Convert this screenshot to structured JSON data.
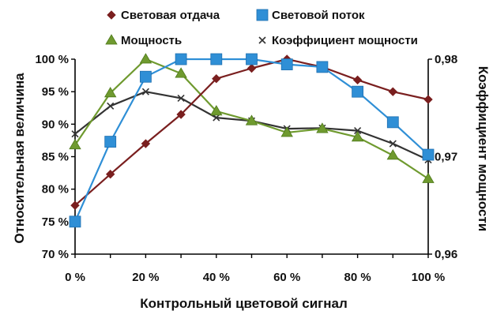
{
  "chart_data": {
    "type": "line",
    "xlabel": "Контрольный цветовой сигнал",
    "ylabel": "Относительная величина",
    "y2label": "Коэффициент мощности",
    "x": [
      0,
      10,
      20,
      30,
      40,
      50,
      60,
      70,
      80,
      90,
      100
    ],
    "x_tick_labels": [
      "0 %",
      "20 %",
      "40 %",
      "60 %",
      "80 %",
      "100 %"
    ],
    "x_tick_values": [
      0,
      20,
      40,
      60,
      80,
      100
    ],
    "ylim": [
      70,
      100
    ],
    "y_tick_labels": [
      "70 %",
      "75 %",
      "80 %",
      "85 %",
      "90 %",
      "95 %",
      "100 %"
    ],
    "y_tick_values": [
      70,
      75,
      80,
      85,
      90,
      95,
      100
    ],
    "y2lim": [
      0.96,
      0.98
    ],
    "y2_tick_labels": [
      "0,96",
      "0,97",
      "0,98"
    ],
    "y2_tick_values": [
      0.96,
      0.97,
      0.98
    ],
    "legend_position": "top",
    "series": [
      {
        "name": "Световая отдача",
        "axis": "left",
        "marker": "diamond",
        "color": "#7a1f1f",
        "values": [
          77.5,
          82.3,
          87.0,
          91.5,
          97.0,
          98.6,
          100.0,
          98.8,
          96.8,
          95.0,
          93.8
        ]
      },
      {
        "name": "Световой поток",
        "axis": "left",
        "marker": "square",
        "color": "#2f8fd6",
        "values": [
          75.0,
          87.3,
          97.3,
          100.0,
          100.0,
          100.0,
          99.2,
          98.8,
          95.0,
          90.3,
          85.3
        ]
      },
      {
        "name": "Мощность",
        "axis": "left",
        "marker": "triangle",
        "color": "#6f9a2f",
        "values": [
          86.8,
          94.8,
          100.0,
          97.8,
          92.0,
          90.5,
          88.7,
          89.3,
          88.0,
          85.2,
          81.6
        ]
      },
      {
        "name": "Коэффициент мощности",
        "axis": "left",
        "marker": "cross",
        "color": "#333333",
        "values": [
          88.5,
          92.8,
          95.0,
          94.0,
          91.0,
          90.5,
          89.3,
          89.4,
          89.0,
          87.0,
          84.5
        ]
      }
    ]
  }
}
